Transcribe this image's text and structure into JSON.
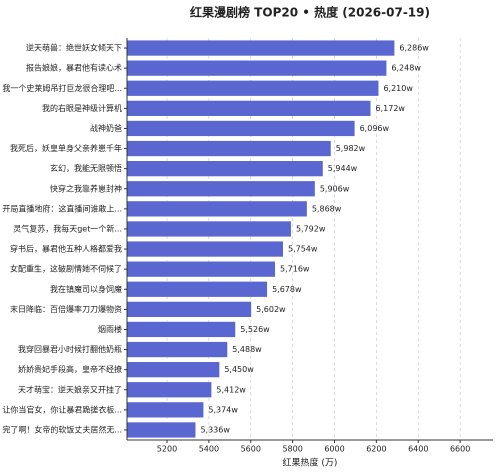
{
  "chart_data": {
    "type": "barh",
    "title": "红果漫剧榜 TOP20 • 热度 (2026-07-19)",
    "x_label": "红果热度 (万)",
    "categories": [
      "逆天萌兽：绝世妖女倾天下",
      "报告娘娘，暴君他有读心术",
      "我一个史莱姆吊打巨龙很合理吧...",
      "我的右眼是神级计算机",
      "战神奶爸",
      "我死后，妖皇单身父亲养崽千年",
      "玄幻，我能无限顿悟",
      "快穿之我靠养崽封神",
      "开局直播地府：这直播间谁敢上...",
      "灵气复苏，我每天get一个新...",
      "穿书后，暴君他五种人格都爱我",
      "女配重生，这破剧情她不伺候了",
      "我在镇魔司以身饲魔",
      "末日降临：百倍爆率刀刀爆物资",
      "烟雨楼",
      "我穿回暴君小时候打翻他奶瓶",
      "娇娇贵妃手段高，皇帝不经撩",
      "天才萌宝：逆天娘亲又开挂了",
      "让你当官女，你让暴君跪搓衣板...",
      "完了啊！女帝的软饭丈夫居然无..."
    ],
    "values": [
      6286,
      6248,
      6210,
      6172,
      6096,
      5982,
      5944,
      5906,
      5868,
      5792,
      5754,
      5716,
      5678,
      5602,
      5526,
      5488,
      5450,
      5412,
      5374,
      5336
    ],
    "value_labels": [
      "6,286w",
      "6,248w",
      "6,210w",
      "6,172w",
      "6,096w",
      "5,982w",
      "5,944w",
      "5,906w",
      "5,868w",
      "5,792w",
      "5,754w",
      "5,716w",
      "5,678w",
      "5,602w",
      "5,526w",
      "5,488w",
      "5,450w",
      "5,412w",
      "5,374w",
      "5,336w"
    ],
    "color": "#5a67d0",
    "xlim": [
      5009,
      6757
    ],
    "xticks": [
      5200,
      5400,
      5600,
      5800,
      6000,
      6200,
      6400,
      6600
    ],
    "grid": true
  }
}
